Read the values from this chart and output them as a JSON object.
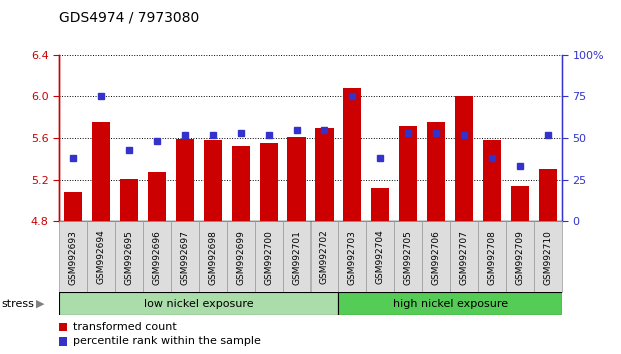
{
  "title": "GDS4974 / 7973080",
  "samples": [
    "GSM992693",
    "GSM992694",
    "GSM992695",
    "GSM992696",
    "GSM992697",
    "GSM992698",
    "GSM992699",
    "GSM992700",
    "GSM992701",
    "GSM992702",
    "GSM992703",
    "GSM992704",
    "GSM992705",
    "GSM992706",
    "GSM992707",
    "GSM992708",
    "GSM992709",
    "GSM992710"
  ],
  "transformed_counts": [
    5.08,
    5.75,
    5.21,
    5.27,
    5.59,
    5.58,
    5.52,
    5.55,
    5.61,
    5.7,
    6.08,
    5.12,
    5.72,
    5.75,
    6.0,
    5.58,
    5.14,
    5.3
  ],
  "percentile_values": [
    0.38,
    0.75,
    0.43,
    0.48,
    0.52,
    0.52,
    0.53,
    0.52,
    0.55,
    0.55,
    0.75,
    0.38,
    0.53,
    0.53,
    0.52,
    0.38,
    0.33,
    0.52
  ],
  "ymin": 4.8,
  "ymax": 6.4,
  "yticks": [
    4.8,
    5.2,
    5.6,
    6.0,
    6.4
  ],
  "ytick_labels": [
    "4.8",
    "5.2",
    "5.6",
    "6.0",
    "6.4"
  ],
  "right_yticks": [
    0,
    25,
    50,
    75,
    100
  ],
  "right_ytick_labels": [
    "0",
    "25",
    "50",
    "75",
    "100%"
  ],
  "bar_color": "#cc0000",
  "dot_color": "#3333cc",
  "bar_bottom": 4.8,
  "group1_label": "low nickel exposure",
  "group2_label": "high nickel exposure",
  "group1_color": "#aaddaa",
  "group2_color": "#55cc55",
  "group1_count": 10,
  "group2_count": 8,
  "stress_label": "stress",
  "legend_bar_label": "transformed count",
  "legend_dot_label": "percentile rank within the sample",
  "axis_color_left": "#cc0000",
  "axis_color_right": "#3333cc",
  "tick_label_bg": "#dddddd",
  "tick_label_edge": "#999999"
}
